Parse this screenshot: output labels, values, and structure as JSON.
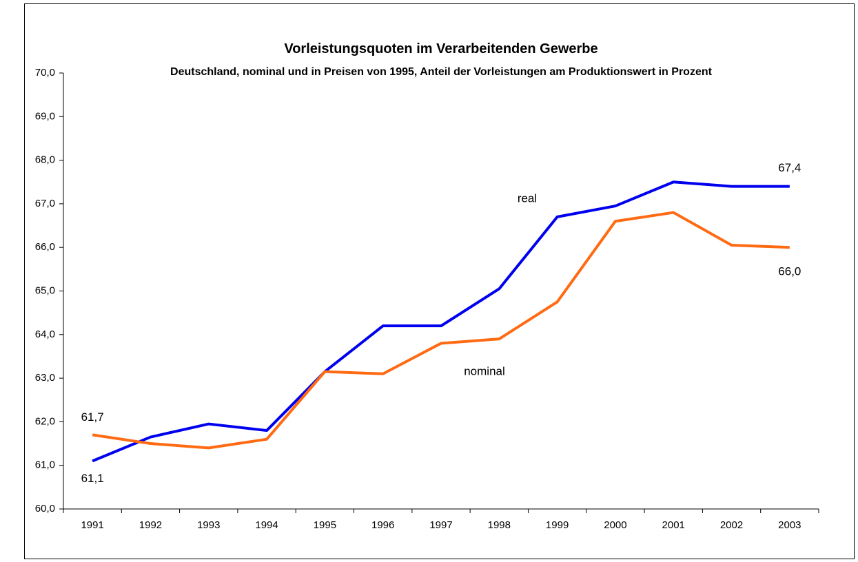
{
  "chart_data": {
    "type": "line",
    "title": "Vorleistungsquoten im Verarbeitenden Gewerbe",
    "subtitle": "Deutschland, nominal und in Preisen von 1995, Anteil der Vorleistungen am Produktionswert in Prozent",
    "categories": [
      "1991",
      "1992",
      "1993",
      "1994",
      "1995",
      "1996",
      "1997",
      "1998",
      "1999",
      "2000",
      "2001",
      "2002",
      "2003"
    ],
    "series": [
      {
        "name": "real",
        "color": "#0000EE",
        "values": [
          61.1,
          61.65,
          61.95,
          61.8,
          63.15,
          64.2,
          64.2,
          65.05,
          66.7,
          66.95,
          67.5,
          67.4,
          67.4
        ],
        "value_labels": [
          "61,1",
          null,
          null,
          null,
          null,
          null,
          null,
          null,
          null,
          null,
          null,
          null,
          "67,4"
        ]
      },
      {
        "name": "nominal",
        "color": "#FF6A13",
        "values": [
          61.7,
          61.5,
          61.4,
          61.6,
          63.15,
          63.1,
          63.8,
          63.9,
          64.75,
          66.6,
          66.8,
          66.05,
          66.0
        ],
        "value_labels": [
          "61,7",
          null,
          null,
          null,
          null,
          null,
          null,
          null,
          null,
          null,
          null,
          null,
          "66,0"
        ]
      }
    ],
    "ylim": [
      60,
      70
    ],
    "yticks": [
      {
        "value": 60,
        "label": "60,0"
      },
      {
        "value": 61,
        "label": "61,0"
      },
      {
        "value": 62,
        "label": "62,0"
      },
      {
        "value": 63,
        "label": "63,0"
      },
      {
        "value": 64,
        "label": "64,0"
      },
      {
        "value": 65,
        "label": "65,0"
      },
      {
        "value": 66,
        "label": "66,0"
      },
      {
        "value": 67,
        "label": "67,0"
      },
      {
        "value": 68,
        "label": "68,0"
      },
      {
        "value": 69,
        "label": "69,0"
      },
      {
        "value": 70,
        "label": "70,0"
      }
    ],
    "grid": false
  }
}
